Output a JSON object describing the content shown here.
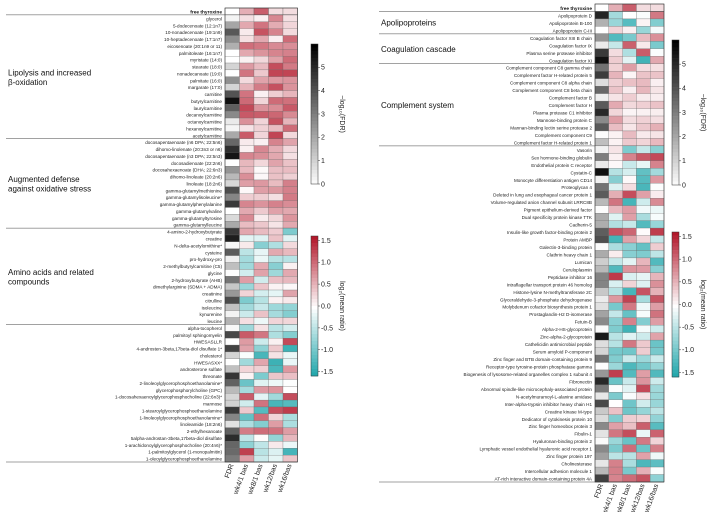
{
  "chart_data": [
    {
      "type": "heatmap",
      "columns": [
        "FDR",
        "wk4/1 bas",
        "wk8/1 bas",
        "wk12/bas",
        "wk16/bas"
      ],
      "header_row": "free thyroxine",
      "groups": [
        {
          "label": "Lipolysis and increased β-oxidation",
          "rows": [
            "glycerol",
            "5-dodecenoate (12:1n7)",
            "10-nonadecenoate (19:1n9)",
            "10-heptadecenoate (17:1n7)",
            "eicosenoate (20:1n9 or 11)",
            "palmitoleate (16:1n7)",
            "myristate (14:0)",
            "stearate (18:0)",
            "nonadecanoate (19:0)",
            "palmitate (16:0)",
            "margarate (17:0)",
            "carnitine",
            "butyrylcarnitine",
            "laurylcarnitine",
            "decanoylcarnitine",
            "octanoylcarnitine",
            "hexanoylcarnitine",
            "acetylcarnitine"
          ]
        },
        {
          "label": "Augmented defense against oxidative stress",
          "rows": [
            "docosapentaenoate (n6 DPA; 22:5n6)",
            "dihomo-linolenate (20:3n3 or n6)",
            "docosapentaenoate (n3 DPA; 22:5n3)",
            "docosadienoate (22:2n6)",
            "docosahexaenoate (DHA; 22:6n3)",
            "dihomo-linoleate (20:2n6)",
            "linoleate (18:2n6)",
            "gamma-glutamylmethionine",
            "gamma-glutamylisoleucine*",
            "gamma-glutamylphenylalanine",
            "gamma-glutamylvaline",
            "gamma-glutamyltyrosine",
            "gamma-glutamylleucine"
          ]
        },
        {
          "label": "Amino acids and related compounds",
          "rows": [
            "4-amino-2-hydroxybutyrate",
            "creatine",
            "N-delta-acetylornithine*",
            "cysteine",
            "pro-hydroxy-pro",
            "2-methylbutyrylcarnitine (C5)",
            "glycine",
            "2-hydroxybutyrate (AHB)",
            "dimethylarginine (SDMA + ADMA)",
            "creatinine",
            "citrulline",
            "isoleucine",
            "kynurenine",
            "leucine"
          ]
        },
        {
          "label": "",
          "rows": [
            "alpha-tocopherol",
            "palmitoyl sphingomyelin",
            "HWESASLLR",
            "4-androsten-3beta,17beta-diol disulfate 1*",
            "cholesterol",
            "HWESASXX*",
            "androsterone sulfate",
            "threonate",
            "2-linoleoylglycerophosphoethanolamine*",
            "glycerophosphorylcholine (GPC)",
            "1-docosahexaenoylglycerophosphocholine (22:6n3)*",
            "mannose",
            "1-stearoylglycerophosphoethanolamine",
            "1-linoleoylglycerophosphoethanolamine*",
            "linoleamide (18:2n6)",
            "2-ethylhexanoate",
            "5alpha-androstan-3beta,17beta-diol disulfate",
            "1-arachidonoylglycerophosphocholine (20:4n6)*",
            "1-palmitoylglycerol (1-monopalmitin)",
            "1-oleoylglycerophosphoethanolamine"
          ]
        }
      ],
      "colorbars": [
        {
          "title": "−log₁₀(FDR)",
          "ticks": [
            "5",
            "4",
            "3",
            "2",
            "1",
            "0"
          ],
          "range": [
            0,
            6
          ],
          "colors": [
            "#ffffff",
            "#000000"
          ]
        },
        {
          "title": "log₂(mean ratio)",
          "ticks": [
            "1.5",
            "1.0",
            "0.5",
            "0.0",
            "-0.5",
            "-1.0",
            "-1.5"
          ],
          "range": [
            -1.6,
            1.6
          ],
          "colors": [
            "#1aa3a8",
            "#ffffff",
            "#b2182b"
          ]
        }
      ]
    },
    {
      "type": "heatmap",
      "columns": [
        "FDR",
        "wk4/1 bas",
        "wk8/1 bas",
        "wk12/bas",
        "wk16/bas"
      ],
      "header_row": "free thyroxine",
      "groups": [
        {
          "label": "Apolipoproteins",
          "rows": [
            "Apolipoprotein D",
            "Apolipoprotein B-100",
            "Apolipoprotein C-III"
          ]
        },
        {
          "label": "Coagulation cascade",
          "rows": [
            "Coagulation factor XIII B chain",
            "Coagulation factor IX",
            "Plasma serine protease inhibitor",
            "Coagulation factor XI"
          ]
        },
        {
          "label": "Complement system",
          "rows": [
            "Complement component C8 gamma chain",
            "Complement factor H-related protein 5",
            "Complement component C8 alpha chain",
            "Complement component C8 beta chain",
            "Complement factor B",
            "Complement factor H",
            "Plasma protease C1 inhibitor",
            "Mannose-binding protein C",
            "Mannan-binding lectin serine protease 2",
            "Complement component C9",
            "Complement factor H-related protein 1"
          ]
        },
        {
          "label": "",
          "rows": [
            "Vasorin",
            "Sex hormone-binding globulin",
            "Endothelial protein C receptor",
            "Cystatin-C",
            "Monocyte differentiation antigen CD14",
            "Proteoglycan 4",
            "Deleted in lung and esophageal cancer protein 1",
            "Volume-regulated anion channel subunit LRRC8B",
            "Pigment epithelium-derived factor",
            "Dual specificity protein kinase TTK",
            "Cadherin-5",
            "Insulin-like growth factor-binding protein 2",
            "Protein AMBP",
            "Galectin-3-binding protein",
            "Clathrin heavy chain 1",
            "Lumican",
            "Ceruloplasmin",
            "Peptidase inhibitor 16",
            "Intraflagellar transport protein 46 homolog",
            "Histone-lysine N-methyltransferase 2C",
            "Glyceraldehyde-3-phosphate dehydrogenase",
            "Molybdenum cofactor biosynthesis protein 1",
            "Prostaglandin-H2 D-isomerase",
            "Fetuin-B",
            "Alpha-2-HS-glycoprotein",
            "Zinc-alpha-2-glycoprotein",
            "Cathelicidin antimicrobial peptide",
            "Serum amyloid P-component",
            "Zinc finger and BTB domain-containing protein 9",
            "Receptor-type tyrosine-protein phosphatase gamma",
            "Biogenesis of lysosome-related organelles complex 1 subunit 4",
            "Fibronectin",
            "Abnormal spindle-like microcephaly-associated protein",
            "N-acetylmuramoyl-L-alanine amidase",
            "Inter-alpha-trypsin inhibitor heavy chain H1",
            "Creatine kinase M-type",
            "Dedicator of cytokinesis protein 10",
            "Zinc finger homeobox protein 3",
            "Fibulin-1",
            "Hyaluronan-binding protein 2",
            "Lymphatic vessel endothelial hyaluronic acid receptor 1",
            "Zinc finger protein 197",
            "Cholinesterase",
            "Intercellular adhesion molecule 1",
            "AT-rich interactive domain-containing protein 4A"
          ]
        }
      ],
      "colorbars": [
        {
          "title": "−log₁₀(FDR)",
          "ticks": [
            "5",
            "4",
            "3",
            "2",
            "1",
            "0"
          ],
          "range": [
            0,
            6
          ],
          "colors": [
            "#ffffff",
            "#000000"
          ]
        },
        {
          "title": "log₂(mean ratio)",
          "ticks": [
            "1.5",
            "1.0",
            "0.5",
            "0.0",
            "-0.5",
            "-1.0",
            "-1.5"
          ],
          "range": [
            -1.6,
            1.6
          ],
          "colors": [
            "#1aa3a8",
            "#ffffff",
            "#b2182b"
          ]
        }
      ]
    }
  ]
}
